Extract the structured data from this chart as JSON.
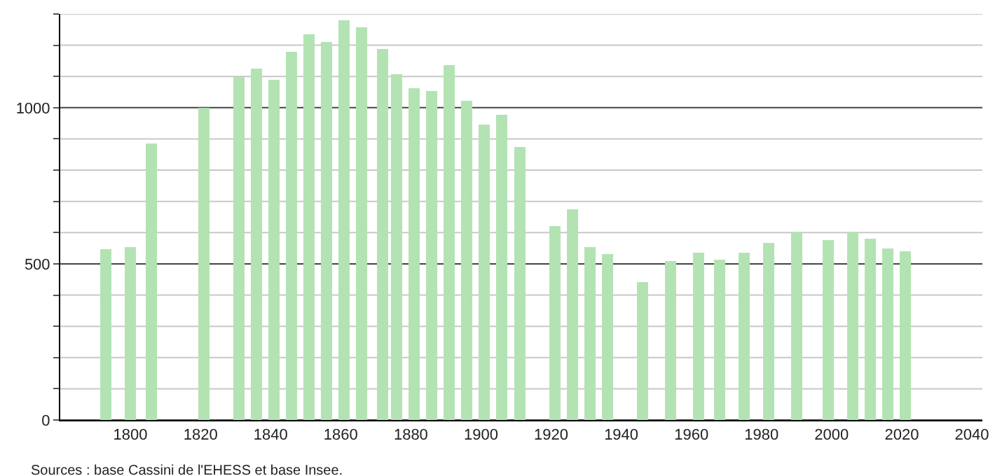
{
  "chart_data": {
    "type": "bar",
    "x": [
      1793,
      1800,
      1806,
      1821,
      1831,
      1836,
      1841,
      1846,
      1851,
      1856,
      1861,
      1866,
      1872,
      1876,
      1881,
      1886,
      1891,
      1896,
      1901,
      1906,
      1911,
      1921,
      1926,
      1931,
      1936,
      1946,
      1954,
      1962,
      1968,
      1975,
      1982,
      1990,
      1999,
      2006,
      2011,
      2016,
      2021
    ],
    "values": [
      548,
      554,
      886,
      1000,
      1099,
      1126,
      1089,
      1179,
      1234,
      1210,
      1279,
      1257,
      1189,
      1108,
      1063,
      1054,
      1137,
      1023,
      946,
      977,
      874,
      622,
      674,
      554,
      532,
      441,
      508,
      536,
      514,
      536,
      568,
      604,
      577,
      604,
      580,
      550,
      541
    ],
    "color": "#b3e3b3",
    "xlim": [
      1780,
      2043
    ],
    "xticks": [
      1800,
      1820,
      1840,
      1860,
      1880,
      1900,
      1920,
      1940,
      1960,
      1980,
      2000,
      2020,
      2040
    ],
    "ylim": [
      0,
      1300
    ],
    "yticks": [
      0,
      {
        "value": 100,
        "label": null
      },
      {
        "value": 200,
        "label": null
      },
      {
        "value": 300,
        "label": null
      },
      {
        "value": 400,
        "label": null
      },
      500,
      {
        "value": 600,
        "label": null
      },
      {
        "value": 700,
        "label": null
      },
      {
        "value": 800,
        "label": null
      },
      {
        "value": 900,
        "label": null
      },
      1000,
      {
        "value": 1100,
        "label": null
      },
      {
        "value": 1200,
        "label": null
      },
      {
        "value": 1300,
        "label": null
      }
    ],
    "grid": "y",
    "annotations": [
      "Sources : base Cassini de l'EHESS et base Insee."
    ]
  }
}
